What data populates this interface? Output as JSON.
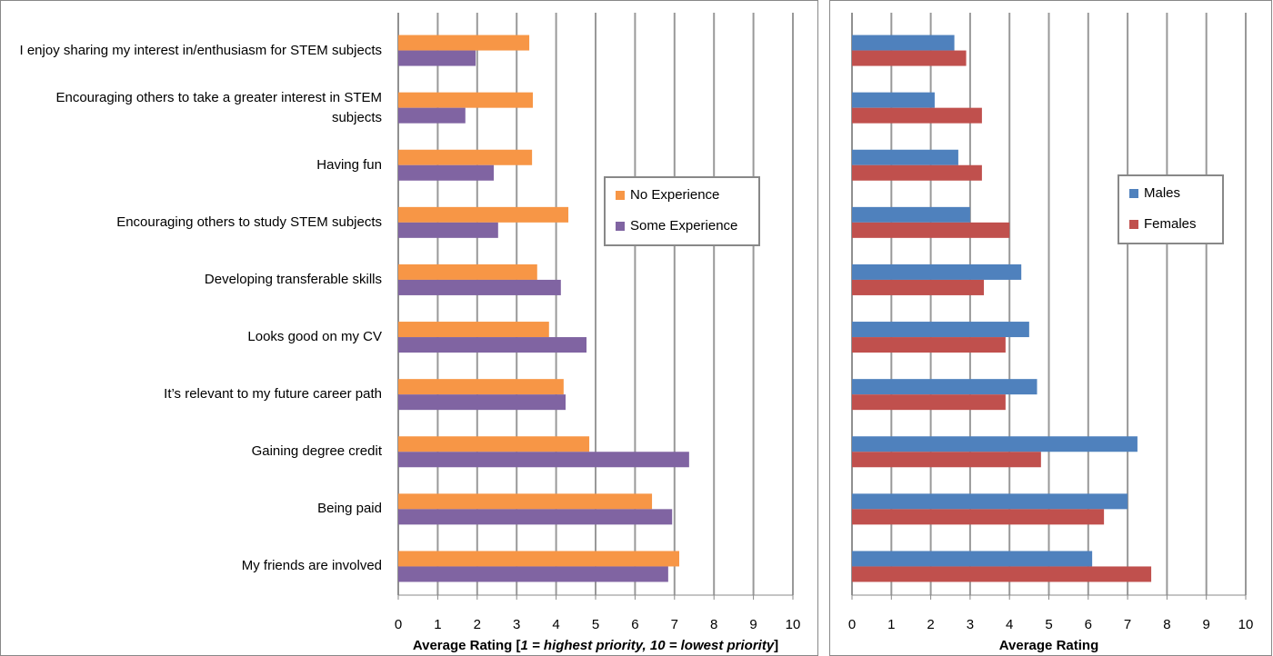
{
  "chart_data": [
    {
      "type": "bar",
      "orientation": "horizontal",
      "categories": [
        "I enjoy sharing my interest in/enthusiasm for STEM subjects",
        "Encouraging others to take a greater interest in STEM subjects",
        "Having fun",
        "Encouraging others to study STEM subjects",
        "Developing transferable skills",
        "Looks good on my CV",
        "It’s relevant to my future career path",
        "Gaining degree credit",
        "Being paid",
        "My friends are involved"
      ],
      "series": [
        {
          "name": "No Experience",
          "color": "#f79646",
          "values": [
            3.32,
            3.41,
            3.39,
            4.31,
            3.52,
            3.82,
            4.19,
            4.84,
            6.43,
            7.12
          ]
        },
        {
          "name": "Some Experience",
          "color": "#8064a2",
          "values": [
            1.96,
            1.7,
            2.42,
            2.53,
            4.12,
            4.77,
            4.24,
            7.37,
            6.94,
            6.84
          ]
        }
      ],
      "xlim": [
        0,
        10
      ],
      "xticks": [
        0,
        1,
        2,
        3,
        4,
        5,
        6,
        7,
        8,
        9,
        10
      ],
      "grid": true,
      "legend": "right",
      "x_label": [
        "Average Rating [",
        "1 = highest priority, 10 = lowest priority",
        "]"
      ]
    },
    {
      "type": "bar",
      "orientation": "horizontal",
      "categories": [
        null,
        null,
        null,
        null,
        null,
        null,
        null,
        null,
        null,
        null
      ],
      "series": [
        {
          "name": "Males",
          "color": "#4f81bd",
          "values": [
            2.6,
            2.1,
            2.7,
            3.0,
            4.3,
            4.5,
            4.7,
            7.25,
            7.0,
            6.1
          ]
        },
        {
          "name": "Females",
          "color": "#c0504d",
          "values": [
            2.9,
            3.3,
            3.3,
            4.0,
            3.35,
            3.9,
            3.9,
            4.8,
            6.4,
            7.6
          ]
        }
      ],
      "xlim": [
        0,
        10
      ],
      "xticks": [
        0,
        1,
        2,
        3,
        4,
        5,
        6,
        7,
        8,
        9,
        10
      ],
      "grid": true,
      "legend": "right",
      "x_label": [
        "Average Rating"
      ]
    }
  ]
}
